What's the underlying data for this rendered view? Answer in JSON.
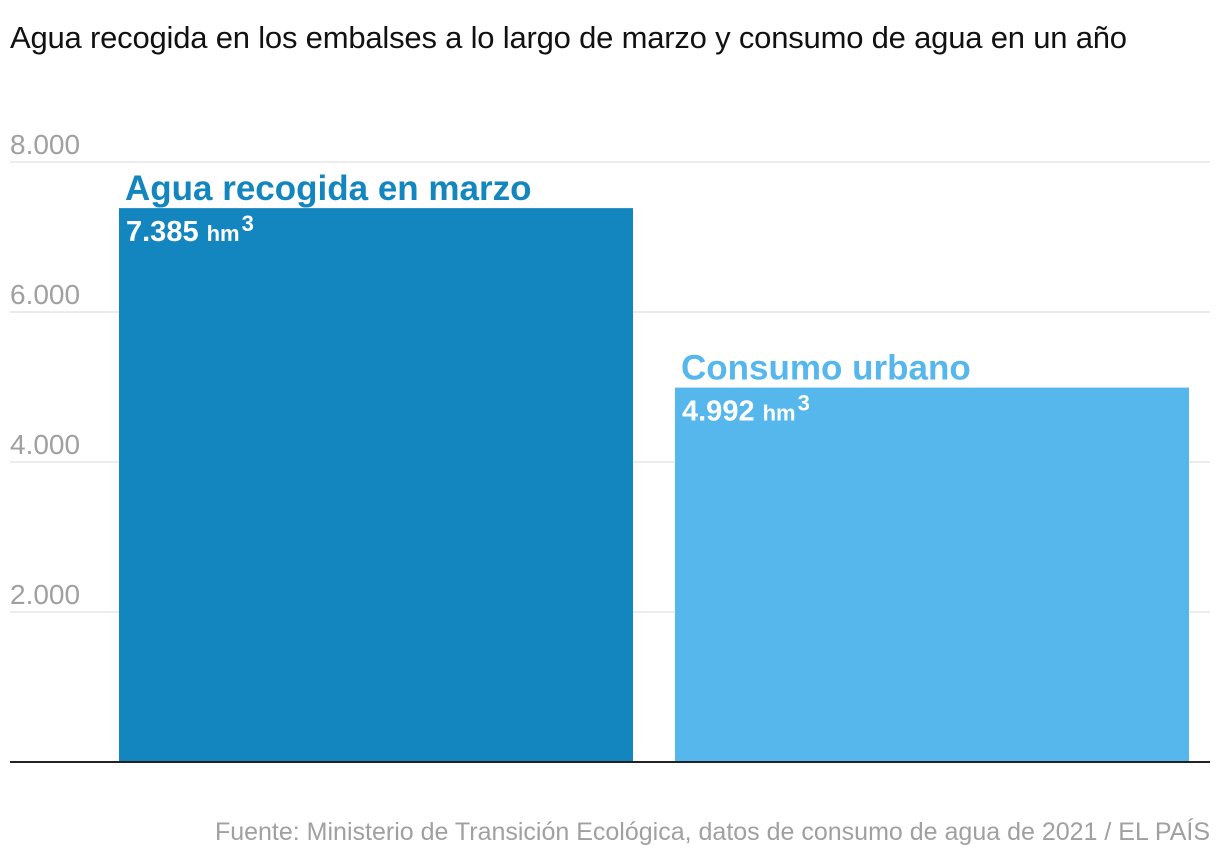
{
  "chart_data": {
    "type": "bar",
    "title": "Agua recogida en los embalses a lo largo de marzo y consumo de agua en un año",
    "categories": [
      "Agua recogida en marzo",
      "Consumo urbano"
    ],
    "values": [
      7385,
      4992
    ],
    "value_labels": [
      "7.385",
      "4.992"
    ],
    "unit": "hm",
    "unit_exponent": "3",
    "colors": [
      "#1386bf",
      "#55b7eb"
    ],
    "yticks": [
      2000,
      4000,
      6000,
      8000
    ],
    "ytick_labels": [
      "2.000",
      "4.000",
      "6.000",
      "8.000"
    ],
    "ylim": [
      0,
      8000
    ],
    "xlabel": "",
    "ylabel": "",
    "grid": true,
    "source": "Fuente: Ministerio de Transición Ecológica, datos de consumo de agua de 2021 / EL PAÍS"
  }
}
